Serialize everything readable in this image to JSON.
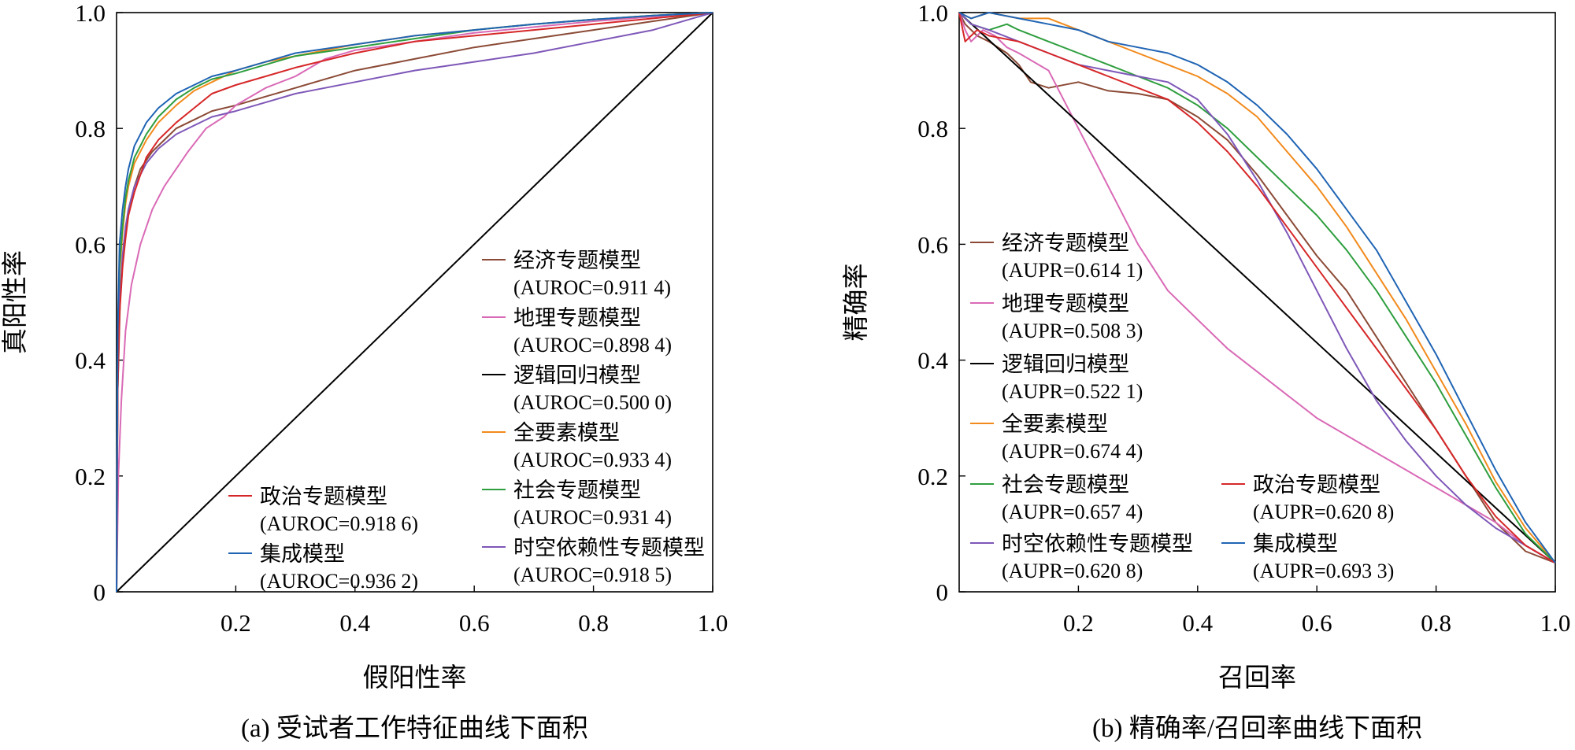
{
  "chart_data": [
    {
      "type": "line",
      "caption": "(a) 受试者工作特征曲线下面积",
      "xlabel": "假阳性率",
      "ylabel": "真阳性率",
      "xlim": [
        0,
        1
      ],
      "ylim": [
        0,
        1
      ],
      "xticks": [
        "0.2",
        "0.4",
        "0.6",
        "0.8",
        "1.0"
      ],
      "yticks": [
        "0",
        "0.2",
        "0.4",
        "0.6",
        "0.8",
        "1.0"
      ],
      "grid": false,
      "series": [
        {
          "name": "经济专题模型",
          "metric": "(AUROC=0.911 4)",
          "color": "#8B4A36",
          "x": [
            0,
            0.002,
            0.006,
            0.012,
            0.02,
            0.03,
            0.04,
            0.06,
            0.08,
            0.1,
            0.13,
            0.16,
            0.2,
            0.25,
            0.3,
            0.35,
            0.4,
            0.5,
            0.6,
            0.7,
            0.8,
            0.9,
            1.0
          ],
          "y": [
            0,
            0.35,
            0.5,
            0.6,
            0.66,
            0.7,
            0.73,
            0.76,
            0.78,
            0.8,
            0.815,
            0.83,
            0.84,
            0.855,
            0.87,
            0.885,
            0.9,
            0.92,
            0.94,
            0.955,
            0.97,
            0.985,
            1.0
          ]
        },
        {
          "name": "地理专题模型",
          "metric": "(AUROC=0.898 4)",
          "color": "#D96AB6",
          "x": [
            0,
            0.003,
            0.008,
            0.015,
            0.025,
            0.04,
            0.06,
            0.08,
            0.1,
            0.12,
            0.15,
            0.18,
            0.2,
            0.25,
            0.3,
            0.35,
            0.4,
            0.5,
            0.6,
            0.7,
            0.8,
            0.9,
            1.0
          ],
          "y": [
            0,
            0.2,
            0.33,
            0.45,
            0.53,
            0.6,
            0.66,
            0.7,
            0.73,
            0.76,
            0.8,
            0.82,
            0.84,
            0.87,
            0.89,
            0.92,
            0.935,
            0.95,
            0.965,
            0.975,
            0.985,
            0.993,
            1.0
          ]
        },
        {
          "name": "逻辑回归模型",
          "metric": "(AUROC=0.500 0)",
          "color": "#000000",
          "x": [
            0,
            1
          ],
          "y": [
            0,
            1
          ]
        },
        {
          "name": "全要素模型",
          "metric": "(AUROC=0.933 4)",
          "color": "#F28A1C",
          "x": [
            0,
            0.002,
            0.005,
            0.01,
            0.015,
            0.02,
            0.03,
            0.04,
            0.05,
            0.07,
            0.1,
            0.13,
            0.16,
            0.2,
            0.25,
            0.3,
            0.4,
            0.5,
            0.6,
            0.7,
            0.8,
            0.9,
            1.0
          ],
          "y": [
            0,
            0.4,
            0.55,
            0.62,
            0.67,
            0.7,
            0.74,
            0.76,
            0.78,
            0.81,
            0.84,
            0.865,
            0.88,
            0.9,
            0.915,
            0.925,
            0.945,
            0.96,
            0.97,
            0.98,
            0.988,
            0.995,
            1.0
          ]
        },
        {
          "name": "社会专题模型",
          "metric": "(AUROC=0.931 4)",
          "color": "#2E9E3E",
          "x": [
            0,
            0.002,
            0.005,
            0.01,
            0.015,
            0.02,
            0.03,
            0.04,
            0.05,
            0.07,
            0.1,
            0.13,
            0.16,
            0.2,
            0.25,
            0.3,
            0.4,
            0.5,
            0.6,
            0.7,
            0.8,
            0.9,
            1.0
          ],
          "y": [
            0,
            0.42,
            0.56,
            0.63,
            0.68,
            0.71,
            0.75,
            0.77,
            0.79,
            0.82,
            0.85,
            0.87,
            0.885,
            0.895,
            0.91,
            0.925,
            0.94,
            0.955,
            0.97,
            0.98,
            0.988,
            0.995,
            1.0
          ]
        },
        {
          "name": "时空依赖性专题模型",
          "metric": "(AUROC=0.918 5)",
          "color": "#7E57B8",
          "x": [
            0,
            0.002,
            0.005,
            0.01,
            0.015,
            0.02,
            0.03,
            0.04,
            0.05,
            0.07,
            0.1,
            0.13,
            0.16,
            0.2,
            0.25,
            0.3,
            0.4,
            0.5,
            0.6,
            0.7,
            0.8,
            0.9,
            1.0
          ],
          "y": [
            0,
            0.38,
            0.5,
            0.58,
            0.63,
            0.66,
            0.7,
            0.72,
            0.74,
            0.765,
            0.79,
            0.805,
            0.82,
            0.83,
            0.845,
            0.86,
            0.88,
            0.9,
            0.915,
            0.93,
            0.95,
            0.97,
            1.0
          ]
        },
        {
          "name": "政治专题模型",
          "metric": "(AUROC=0.918 6)",
          "color": "#D62728",
          "x": [
            0,
            0.002,
            0.005,
            0.01,
            0.015,
            0.02,
            0.03,
            0.04,
            0.05,
            0.07,
            0.1,
            0.13,
            0.16,
            0.2,
            0.25,
            0.3,
            0.4,
            0.5,
            0.6,
            0.7,
            0.8,
            0.9,
            1.0
          ],
          "y": [
            0,
            0.35,
            0.48,
            0.56,
            0.61,
            0.65,
            0.69,
            0.72,
            0.75,
            0.78,
            0.81,
            0.835,
            0.86,
            0.875,
            0.89,
            0.905,
            0.93,
            0.95,
            0.96,
            0.97,
            0.98,
            0.99,
            1.0
          ]
        },
        {
          "name": "集成模型",
          "metric": "(AUROC=0.936 2)",
          "color": "#1F64B4",
          "x": [
            0,
            0.002,
            0.005,
            0.01,
            0.015,
            0.02,
            0.03,
            0.04,
            0.05,
            0.07,
            0.1,
            0.13,
            0.16,
            0.2,
            0.25,
            0.3,
            0.4,
            0.5,
            0.6,
            0.7,
            0.8,
            0.9,
            1.0
          ],
          "y": [
            0,
            0.45,
            0.6,
            0.66,
            0.7,
            0.73,
            0.77,
            0.79,
            0.81,
            0.835,
            0.86,
            0.875,
            0.89,
            0.9,
            0.915,
            0.93,
            0.945,
            0.96,
            0.97,
            0.98,
            0.988,
            0.995,
            1.0
          ]
        }
      ]
    },
    {
      "type": "line",
      "caption": "(b) 精确率/召回率曲线下面积",
      "xlabel": "召回率",
      "ylabel": "精确率",
      "xlim": [
        0,
        1
      ],
      "ylim": [
        0,
        1
      ],
      "xticks": [
        "0.2",
        "0.4",
        "0.6",
        "0.8",
        "1.0"
      ],
      "yticks": [
        "0",
        "0.2",
        "0.4",
        "0.6",
        "0.8",
        "1.0"
      ],
      "grid": false,
      "series": [
        {
          "name": "经济专题模型",
          "metric": "(AUPR=0.614 1)",
          "color": "#8B4A36",
          "x": [
            0,
            0.01,
            0.03,
            0.05,
            0.08,
            0.1,
            0.12,
            0.15,
            0.2,
            0.25,
            0.3,
            0.35,
            0.4,
            0.45,
            0.5,
            0.55,
            0.6,
            0.65,
            0.7,
            0.75,
            0.8,
            0.85,
            0.9,
            0.95,
            1.0
          ],
          "y": [
            1.0,
            0.98,
            0.96,
            0.95,
            0.93,
            0.91,
            0.88,
            0.87,
            0.88,
            0.865,
            0.86,
            0.85,
            0.82,
            0.78,
            0.72,
            0.65,
            0.58,
            0.52,
            0.44,
            0.36,
            0.28,
            0.2,
            0.12,
            0.07,
            0.05
          ]
        },
        {
          "name": "地理专题模型",
          "metric": "(AUPR=0.508 3)",
          "color": "#D96AB6",
          "x": [
            0,
            0.01,
            0.02,
            0.04,
            0.06,
            0.08,
            0.1,
            0.15,
            0.2,
            0.25,
            0.3,
            0.35,
            0.4,
            0.45,
            0.5,
            0.55,
            0.6,
            0.65,
            0.7,
            0.75,
            0.8,
            0.85,
            0.9,
            0.95,
            1.0
          ],
          "y": [
            1.0,
            0.97,
            0.95,
            0.97,
            0.96,
            0.94,
            0.93,
            0.9,
            0.8,
            0.7,
            0.6,
            0.52,
            0.47,
            0.42,
            0.38,
            0.34,
            0.3,
            0.27,
            0.24,
            0.21,
            0.18,
            0.15,
            0.12,
            0.08,
            0.05
          ]
        },
        {
          "name": "逻辑回归模型",
          "metric": "(AUPR=0.522 1)",
          "color": "#000000",
          "x": [
            0,
            1
          ],
          "y": [
            1.0,
            0.05
          ]
        },
        {
          "name": "全要素模型",
          "metric": "(AUPR=0.674 4)",
          "color": "#F28A1C",
          "x": [
            0,
            0.02,
            0.05,
            0.1,
            0.15,
            0.2,
            0.25,
            0.3,
            0.35,
            0.4,
            0.45,
            0.5,
            0.55,
            0.6,
            0.65,
            0.7,
            0.75,
            0.8,
            0.85,
            0.9,
            0.95,
            1.0
          ],
          "y": [
            1.0,
            0.99,
            1.0,
            0.99,
            0.99,
            0.97,
            0.95,
            0.93,
            0.91,
            0.89,
            0.86,
            0.82,
            0.76,
            0.7,
            0.63,
            0.55,
            0.47,
            0.38,
            0.29,
            0.19,
            0.11,
            0.05
          ]
        },
        {
          "name": "社会专题模型",
          "metric": "(AUPR=0.657 4)",
          "color": "#2E9E3E",
          "x": [
            0,
            0.02,
            0.05,
            0.08,
            0.1,
            0.15,
            0.2,
            0.25,
            0.3,
            0.35,
            0.4,
            0.45,
            0.5,
            0.55,
            0.6,
            0.65,
            0.7,
            0.75,
            0.8,
            0.85,
            0.9,
            0.95,
            1.0
          ],
          "y": [
            1.0,
            0.98,
            0.97,
            0.98,
            0.97,
            0.95,
            0.93,
            0.91,
            0.89,
            0.87,
            0.84,
            0.8,
            0.75,
            0.7,
            0.65,
            0.59,
            0.52,
            0.44,
            0.36,
            0.27,
            0.18,
            0.1,
            0.05
          ]
        },
        {
          "name": "时空依赖性专题模型",
          "metric": "(AUPR=0.620 8)",
          "color": "#7E57B8",
          "x": [
            0,
            0.02,
            0.05,
            0.1,
            0.15,
            0.2,
            0.25,
            0.3,
            0.35,
            0.4,
            0.45,
            0.5,
            0.55,
            0.6,
            0.65,
            0.7,
            0.75,
            0.8,
            0.85,
            0.9,
            0.95,
            1.0
          ],
          "y": [
            1.0,
            0.98,
            0.97,
            0.95,
            0.93,
            0.91,
            0.9,
            0.89,
            0.88,
            0.85,
            0.79,
            0.71,
            0.62,
            0.52,
            0.42,
            0.33,
            0.26,
            0.2,
            0.15,
            0.11,
            0.08,
            0.05
          ]
        },
        {
          "name": "政治专题模型",
          "metric": "(AUPR=0.620 8)",
          "color": "#D62728",
          "x": [
            0,
            0.01,
            0.03,
            0.05,
            0.1,
            0.15,
            0.2,
            0.25,
            0.3,
            0.35,
            0.4,
            0.45,
            0.5,
            0.55,
            0.6,
            0.65,
            0.7,
            0.75,
            0.8,
            0.85,
            0.9,
            0.95,
            1.0
          ],
          "y": [
            1.0,
            0.95,
            0.97,
            0.96,
            0.95,
            0.93,
            0.91,
            0.89,
            0.87,
            0.85,
            0.81,
            0.76,
            0.7,
            0.63,
            0.56,
            0.49,
            0.42,
            0.35,
            0.28,
            0.2,
            0.13,
            0.08,
            0.05
          ]
        },
        {
          "name": "集成模型",
          "metric": "(AUPR=0.693 3)",
          "color": "#1F64B4",
          "x": [
            0,
            0.02,
            0.05,
            0.1,
            0.15,
            0.2,
            0.25,
            0.3,
            0.35,
            0.4,
            0.45,
            0.5,
            0.55,
            0.6,
            0.65,
            0.7,
            0.75,
            0.8,
            0.85,
            0.9,
            0.95,
            1.0
          ],
          "y": [
            1.0,
            0.99,
            1.0,
            0.99,
            0.98,
            0.97,
            0.95,
            0.94,
            0.93,
            0.91,
            0.88,
            0.84,
            0.79,
            0.73,
            0.66,
            0.59,
            0.5,
            0.41,
            0.31,
            0.21,
            0.12,
            0.05
          ]
        }
      ]
    }
  ]
}
